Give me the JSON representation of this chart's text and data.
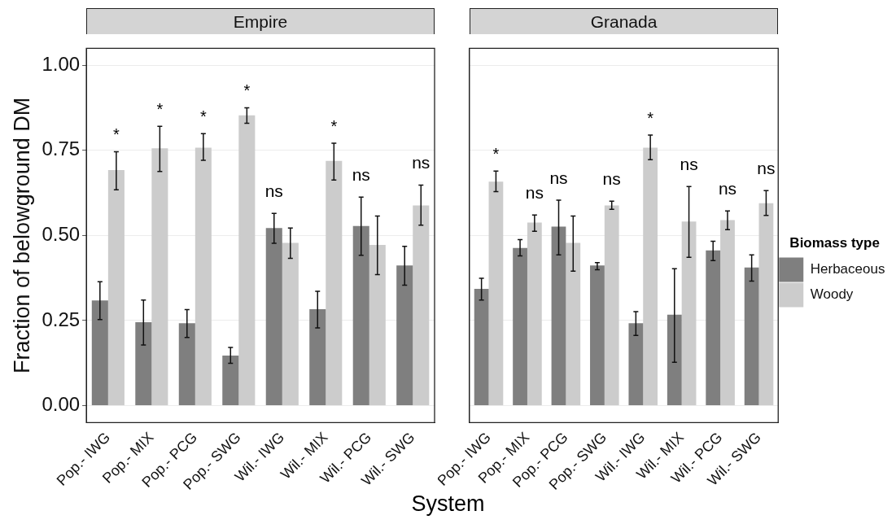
{
  "chart_data": [
    {
      "type": "bar",
      "title": "Empire",
      "ylabel": "Fraction of belowground DM",
      "xlabel": "System",
      "categories": [
        "Pop.- IWG",
        "Pop.- MIX",
        "Pop.- PCG",
        "Pop.- SWG",
        "Wil.- IWG",
        "Wil.- MIX",
        "Wil.- PCG",
        "Wil.- SWG"
      ],
      "series": [
        {
          "color": "#7f7f7f",
          "values": [
            0.309,
            0.245,
            0.242,
            0.147,
            0.522,
            0.283,
            0.528,
            0.412
          ],
          "errors": [
            [
              0.253,
              0.364
            ],
            [
              0.178,
              0.31
            ],
            [
              0.2,
              0.282
            ],
            [
              0.124,
              0.171
            ],
            [
              0.477,
              0.565
            ],
            [
              0.228,
              0.336
            ],
            [
              0.442,
              0.613
            ],
            [
              0.354,
              0.468
            ]
          ]
        },
        {
          "color": "#cccccc",
          "values": [
            0.692,
            0.756,
            0.758,
            0.853,
            0.478,
            0.719,
            0.472,
            0.588
          ],
          "errors": [
            [
              0.634,
              0.746
            ],
            [
              0.688,
              0.821
            ],
            [
              0.721,
              0.799
            ],
            [
              0.83,
              0.875
            ],
            [
              0.433,
              0.522
            ],
            [
              0.663,
              0.771
            ],
            [
              0.385,
              0.557
            ],
            [
              0.53,
              0.648
            ]
          ]
        }
      ],
      "annotations": [
        "*",
        "*",
        "*",
        "*",
        "ns",
        "*",
        "ns",
        "ns"
      ],
      "ylim": [
        -0.05,
        1.05
      ],
      "yticks": [
        {
          "value": 0,
          "label": "0.00"
        },
        {
          "value": 0.25,
          "label": "0.25"
        },
        {
          "value": 0.5,
          "label": "0.50"
        },
        {
          "value": 0.75,
          "label": "0.75"
        },
        {
          "value": 1,
          "label": "1.00"
        }
      ],
      "grid": "y",
      "legend": false
    },
    {
      "type": "bar",
      "title": "Granada",
      "legend_title": "Biomass type",
      "categories": [
        "Pop.- IWG",
        "Pop.- MIX",
        "Pop.- PCG",
        "Pop.- SWG",
        "Wil.- IWG",
        "Wil.- MIX",
        "Wil.- PCG",
        "Wil.- SWG"
      ],
      "series": [
        {
          "name": "Herbaceous",
          "color": "#7f7f7f",
          "values": [
            0.343,
            0.463,
            0.526,
            0.412,
            0.242,
            0.267,
            0.456,
            0.406
          ],
          "errors": [
            [
              0.31,
              0.374
            ],
            [
              0.44,
              0.488
            ],
            [
              0.443,
              0.604
            ],
            [
              0.399,
              0.42
            ],
            [
              0.206,
              0.276
            ],
            [
              0.127,
              0.402
            ],
            [
              0.426,
              0.483
            ],
            [
              0.366,
              0.443
            ]
          ]
        },
        {
          "name": "Woody",
          "color": "#cccccc",
          "values": [
            0.658,
            0.538,
            0.478,
            0.588,
            0.758,
            0.541,
            0.545,
            0.595
          ],
          "errors": [
            [
              0.629,
              0.689
            ],
            [
              0.512,
              0.56
            ],
            [
              0.395,
              0.557
            ],
            [
              0.577,
              0.601
            ],
            [
              0.723,
              0.795
            ],
            [
              0.436,
              0.644
            ],
            [
              0.517,
              0.572
            ],
            [
              0.559,
              0.632
            ]
          ]
        }
      ],
      "annotations": [
        "*",
        "ns",
        "ns",
        "ns",
        "*",
        "ns",
        "ns",
        "ns"
      ],
      "ylim": [
        -0.05,
        1.05
      ],
      "yticks": [
        0,
        0.25,
        0.5,
        0.75,
        1
      ],
      "grid": "y",
      "legend": "right",
      "tick_labels": "x"
    }
  ]
}
